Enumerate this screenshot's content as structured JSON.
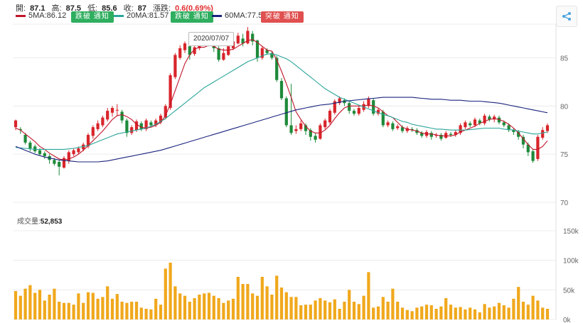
{
  "header": {
    "open_label": "開:",
    "open": "87.1",
    "high_label": "高:",
    "high": "87.5",
    "low_label": "低:",
    "low": "85.6",
    "close_label": "收:",
    "close": "87",
    "change_label": "漲跌:",
    "change": "0.6(0.69%)"
  },
  "ma": [
    {
      "label": "5MA:86.12",
      "color": "#c0152a",
      "button": "跌破 通知",
      "button_color": "#2fae5f"
    },
    {
      "label": "20MA:81.57",
      "color": "#2ba59a",
      "button": "跌破 通知",
      "button_color": "#2fae5f"
    },
    {
      "label": "60MA:77.52",
      "color": "#1a237e",
      "button": "突破 通知",
      "button_color": "#e05050"
    }
  ],
  "tooltip": "2020/07/07",
  "volume_label": "成交量:",
  "volume_value": "52,853",
  "icons": {
    "share": "share-icon"
  },
  "colors": {
    "up": "#d8252b",
    "down": "#1e8a3a",
    "volume": "#f0a81c",
    "grid": "#ececec"
  },
  "chart_data": {
    "type": "candlestick",
    "price_axis": {
      "ticks": [
        70,
        75,
        80,
        85
      ],
      "range": [
        70,
        88.5
      ]
    },
    "volume_axis": {
      "ticks": [
        "0k",
        "50k",
        "100k",
        "150k"
      ],
      "range": [
        0,
        150
      ]
    },
    "candles": [
      [
        77.8,
        78.5,
        77.5,
        78.6,
        48
      ],
      [
        77.6,
        77.5,
        77.1,
        77.8,
        40
      ],
      [
        77.0,
        76.2,
        76.0,
        77.2,
        52
      ],
      [
        76.2,
        75.6,
        75.3,
        76.4,
        58
      ],
      [
        75.8,
        75.3,
        75.1,
        76.0,
        45
      ],
      [
        75.4,
        75.0,
        74.9,
        75.6,
        50
      ],
      [
        75.1,
        74.8,
        74.5,
        75.3,
        32
      ],
      [
        74.8,
        74.4,
        74.0,
        75.0,
        42
      ],
      [
        74.4,
        74.0,
        73.8,
        74.6,
        52
      ],
      [
        74.2,
        73.7,
        72.8,
        74.4,
        30
      ],
      [
        73.6,
        74.6,
        73.5,
        74.8,
        28
      ],
      [
        74.3,
        75.2,
        74.0,
        75.4,
        28
      ],
      [
        75.0,
        75.4,
        74.8,
        75.6,
        25
      ],
      [
        75.2,
        75.6,
        75.0,
        75.8,
        44
      ],
      [
        75.5,
        76.0,
        75.3,
        76.2,
        28
      ],
      [
        75.8,
        77.0,
        75.6,
        77.2,
        46
      ],
      [
        76.9,
        77.8,
        76.6,
        78.0,
        45
      ],
      [
        77.6,
        78.2,
        77.4,
        78.5,
        35
      ],
      [
        78.0,
        78.8,
        77.8,
        79.0,
        38
      ],
      [
        78.6,
        79.5,
        78.4,
        79.8,
        56
      ],
      [
        79.3,
        79.8,
        78.9,
        80.0,
        35
      ],
      [
        79.6,
        79.6,
        79.0,
        80.2,
        43
      ],
      [
        79.4,
        78.5,
        78.2,
        79.6,
        30
      ],
      [
        78.5,
        77.2,
        76.8,
        78.7,
        28
      ],
      [
        77.2,
        77.8,
        77.0,
        78.0,
        30
      ],
      [
        77.5,
        78.4,
        77.3,
        78.6,
        30
      ],
      [
        78.2,
        77.6,
        77.4,
        78.4,
        20
      ],
      [
        77.6,
        78.5,
        77.4,
        78.7,
        18
      ],
      [
        78.3,
        78.0,
        77.8,
        78.5,
        17
      ],
      [
        78.0,
        78.5,
        77.8,
        78.7,
        35
      ],
      [
        78.3,
        79.0,
        78.1,
        79.2,
        25
      ],
      [
        78.8,
        80.0,
        78.6,
        80.2,
        86
      ],
      [
        79.8,
        83.2,
        79.6,
        83.4,
        96
      ],
      [
        83.0,
        85.3,
        82.8,
        85.5,
        56
      ],
      [
        85.0,
        86.0,
        84.8,
        86.3,
        44
      ],
      [
        85.8,
        86.5,
        85.5,
        86.7,
        40
      ],
      [
        86.2,
        85.3,
        84.8,
        86.4,
        30
      ],
      [
        85.4,
        86.1,
        85.2,
        86.3,
        36
      ],
      [
        86.0,
        86.7,
        85.8,
        86.9,
        42
      ],
      [
        86.5,
        87.0,
        86.3,
        87.3,
        44
      ],
      [
        86.8,
        86.5,
        86.2,
        87.0,
        45
      ],
      [
        86.6,
        86.0,
        85.6,
        86.8,
        40
      ],
      [
        86.0,
        84.8,
        84.6,
        86.2,
        36
      ],
      [
        84.8,
        85.5,
        84.7,
        86.0,
        28
      ],
      [
        85.3,
        86.2,
        85.2,
        86.5,
        32
      ],
      [
        86.0,
        86.7,
        85.8,
        87.0,
        35
      ],
      [
        86.5,
        87.3,
        86.4,
        87.6,
        72
      ],
      [
        87.0,
        86.5,
        86.2,
        87.5,
        60
      ],
      [
        86.5,
        87.8,
        86.4,
        88.2,
        60
      ],
      [
        87.5,
        86.7,
        86.3,
        87.8,
        44
      ],
      [
        86.8,
        85.0,
        84.6,
        86.9,
        40
      ],
      [
        85.0,
        86.0,
        84.8,
        86.2,
        72
      ],
      [
        85.8,
        85.5,
        85.3,
        86.0,
        56
      ],
      [
        85.5,
        85.0,
        84.8,
        85.7,
        42
      ],
      [
        85.0,
        82.7,
        82.5,
        85.2,
        74
      ],
      [
        82.6,
        80.8,
        80.6,
        82.9,
        54
      ],
      [
        80.8,
        78.0,
        77.8,
        81.0,
        46
      ],
      [
        78.0,
        77.2,
        77.0,
        82.3,
        38
      ],
      [
        77.4,
        77.6,
        77.1,
        78.0,
        38
      ],
      [
        77.6,
        78.2,
        77.4,
        78.5,
        24
      ],
      [
        78.0,
        77.4,
        77.0,
        78.2,
        25
      ],
      [
        77.5,
        76.8,
        76.4,
        77.7,
        25
      ],
      [
        76.9,
        76.5,
        76.2,
        77.2,
        32
      ],
      [
        76.6,
        78.0,
        76.5,
        78.2,
        36
      ],
      [
        77.8,
        78.5,
        77.6,
        78.7,
        32
      ],
      [
        78.3,
        79.5,
        78.1,
        79.7,
        29
      ],
      [
        79.3,
        80.5,
        79.1,
        80.7,
        34
      ],
      [
        80.3,
        80.8,
        80.1,
        81.0,
        18
      ],
      [
        80.6,
        80.3,
        80.0,
        80.8,
        30
      ],
      [
        80.3,
        79.5,
        79.2,
        80.5,
        50
      ],
      [
        79.5,
        79.2,
        79.0,
        79.7,
        30
      ],
      [
        79.2,
        79.8,
        79.0,
        80.0,
        26
      ],
      [
        79.6,
        80.2,
        79.4,
        80.5,
        40
      ],
      [
        80.0,
        80.8,
        79.8,
        81.0,
        80
      ],
      [
        80.6,
        79.2,
        79.0,
        80.8,
        20
      ],
      [
        79.2,
        79.6,
        79.0,
        79.8,
        22
      ],
      [
        79.4,
        78.0,
        77.8,
        79.6,
        38
      ],
      [
        78.0,
        78.3,
        77.8,
        78.5,
        30
      ],
      [
        78.2,
        77.6,
        77.4,
        78.4,
        52
      ],
      [
        77.7,
        77.9,
        77.5,
        78.1,
        30
      ],
      [
        77.8,
        77.4,
        77.2,
        78.0,
        20
      ],
      [
        77.4,
        77.7,
        77.2,
        77.9,
        16
      ],
      [
        77.6,
        77.5,
        77.3,
        77.8,
        14
      ],
      [
        77.5,
        77.2,
        77.0,
        77.7,
        20
      ],
      [
        77.2,
        76.9,
        76.7,
        77.4,
        22
      ],
      [
        76.9,
        77.3,
        76.7,
        77.5,
        25
      ],
      [
        77.2,
        76.8,
        76.5,
        77.4,
        24
      ],
      [
        76.9,
        77.0,
        76.7,
        77.2,
        18
      ],
      [
        77.0,
        76.6,
        76.4,
        77.2,
        22
      ],
      [
        76.7,
        77.2,
        76.6,
        77.4,
        36
      ],
      [
        77.1,
        77.0,
        76.8,
        77.3,
        25
      ],
      [
        77.0,
        77.3,
        76.8,
        77.5,
        20
      ],
      [
        77.2,
        78.0,
        77.0,
        78.2,
        21
      ],
      [
        77.8,
        78.3,
        77.6,
        78.5,
        17
      ],
      [
        78.2,
        78.0,
        77.8,
        78.4,
        20
      ],
      [
        78.0,
        78.6,
        77.8,
        78.8,
        17
      ],
      [
        78.5,
        78.2,
        78.0,
        78.7,
        12
      ],
      [
        78.2,
        79.0,
        78.0,
        79.2,
        26
      ],
      [
        78.9,
        78.6,
        78.4,
        79.1,
        20
      ],
      [
        78.6,
        78.9,
        78.3,
        79.1,
        22
      ],
      [
        78.8,
        78.3,
        78.1,
        79.0,
        28
      ],
      [
        78.3,
        78.0,
        77.8,
        78.5,
        24
      ],
      [
        78.0,
        77.5,
        77.3,
        78.2,
        20
      ],
      [
        77.5,
        77.3,
        77.0,
        77.7,
        35
      ],
      [
        77.3,
        76.8,
        76.5,
        77.5,
        55
      ],
      [
        76.8,
        76.0,
        75.6,
        77.0,
        30
      ],
      [
        76.0,
        75.2,
        74.8,
        76.2,
        25
      ],
      [
        75.3,
        74.3,
        74.1,
        75.5,
        40
      ],
      [
        74.5,
        76.8,
        74.3,
        77.0,
        32
      ],
      [
        76.7,
        77.5,
        76.5,
        77.8,
        20
      ],
      [
        77.4,
        78.0,
        77.2,
        78.2,
        18
      ]
    ],
    "ma_lines": [
      {
        "name": "5MA",
        "values": [
          77.7,
          77.5,
          77.1,
          76.7,
          76.3,
          75.8,
          75.5,
          75.1,
          74.8,
          74.5,
          74.4,
          74.5,
          74.7,
          75.0,
          75.4,
          75.9,
          76.4,
          76.9,
          77.4,
          78.0,
          78.6,
          79.0,
          79.1,
          78.9,
          78.6,
          78.1,
          77.8,
          77.7,
          77.8,
          78.0,
          78.3,
          79.0,
          80.2,
          81.6,
          83.0,
          84.4,
          85.3,
          85.9,
          86.1,
          86.1,
          86.3,
          86.2,
          85.9,
          85.8,
          85.8,
          85.9,
          86.2,
          86.5,
          86.8,
          86.9,
          86.6,
          86.2,
          85.8,
          85.7,
          84.8,
          83.6,
          82.3,
          80.9,
          79.4,
          78.6,
          77.9,
          77.4,
          77.2,
          77.2,
          77.5,
          78.0,
          78.7,
          79.3,
          79.8,
          80.0,
          80.0,
          80.0,
          80.0,
          80.1,
          80.0,
          79.8,
          79.4,
          79.0,
          78.8,
          78.3,
          77.8,
          77.6,
          77.5,
          77.4,
          77.2,
          77.1,
          77.1,
          77.0,
          76.9,
          76.9,
          76.9,
          77.0,
          77.3,
          77.5,
          77.7,
          77.9,
          78.2,
          78.4,
          78.6,
          78.7,
          78.6,
          78.4,
          78.1,
          77.7,
          77.2,
          76.6,
          76.0,
          75.5,
          75.5,
          75.8,
          76.4
        ]
      },
      {
        "name": "20MA",
        "values": [
          75.7,
          75.65,
          75.6,
          75.55,
          75.5,
          75.5,
          75.5,
          75.5,
          75.5,
          75.5,
          75.5,
          75.55,
          75.6,
          75.7,
          75.8,
          75.9,
          76.1,
          76.3,
          76.5,
          76.7,
          76.9,
          77.1,
          77.2,
          77.3,
          77.4,
          77.5,
          77.6,
          77.7,
          77.9,
          78.1,
          78.4,
          78.7,
          79.1,
          79.5,
          79.9,
          80.3,
          80.7,
          81.1,
          81.5,
          81.9,
          82.2,
          82.5,
          82.8,
          83.1,
          83.4,
          83.7,
          84.0,
          84.3,
          84.6,
          84.8,
          85.0,
          85.2,
          85.4,
          85.4,
          85.3,
          85.1,
          84.9,
          84.6,
          84.2,
          83.8,
          83.4,
          83.0,
          82.6,
          82.2,
          81.8,
          81.5,
          81.2,
          80.9,
          80.7,
          80.5,
          80.3,
          80.1,
          79.9,
          79.7,
          79.5,
          79.3,
          79.1,
          79.0,
          78.8,
          78.6,
          78.4,
          78.3,
          78.1,
          78.0,
          77.9,
          77.8,
          77.7,
          77.6,
          77.6,
          77.55,
          77.5,
          77.5,
          77.5,
          77.5,
          77.55,
          77.6,
          77.65,
          77.7,
          77.7,
          77.7,
          77.7,
          77.6,
          77.55,
          77.5,
          77.4,
          77.3,
          77.2,
          77.1,
          77.1,
          77.2,
          77.3
        ]
      },
      {
        "name": "60MA",
        "values": [
          75.8,
          75.6,
          75.4,
          75.2,
          75.0,
          74.85,
          74.7,
          74.6,
          74.5,
          74.4,
          74.35,
          74.3,
          74.25,
          74.2,
          74.2,
          74.2,
          74.2,
          74.2,
          74.25,
          74.3,
          74.4,
          74.5,
          74.6,
          74.7,
          74.8,
          74.9,
          75.0,
          75.1,
          75.2,
          75.3,
          75.4,
          75.55,
          75.7,
          75.85,
          76.0,
          76.15,
          76.3,
          76.45,
          76.6,
          76.75,
          76.9,
          77.05,
          77.2,
          77.35,
          77.5,
          77.65,
          77.8,
          77.95,
          78.1,
          78.25,
          78.4,
          78.55,
          78.7,
          78.85,
          79.0,
          79.15,
          79.3,
          79.45,
          79.6,
          79.7,
          79.8,
          79.9,
          80.0,
          80.1,
          80.15,
          80.2,
          80.3,
          80.4,
          80.5,
          80.55,
          80.6,
          80.65,
          80.7,
          80.75,
          80.8,
          80.85,
          80.9,
          80.9,
          80.9,
          80.9,
          80.9,
          80.9,
          80.9,
          80.85,
          80.8,
          80.75,
          80.7,
          80.7,
          80.7,
          80.65,
          80.6,
          80.6,
          80.6,
          80.55,
          80.5,
          80.5,
          80.5,
          80.45,
          80.4,
          80.35,
          80.3,
          80.2,
          80.1,
          80.0,
          79.9,
          79.8,
          79.7,
          79.6,
          79.5,
          79.4,
          79.3
        ]
      }
    ]
  }
}
